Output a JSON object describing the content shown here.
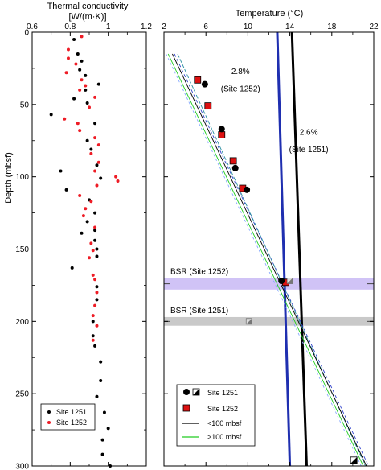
{
  "chart_data": [
    {
      "type": "scatter",
      "title_lines": [
        "Thermal conductivity",
        "[W/(m·K)]"
      ],
      "ylabel": "Depth (mbsf)",
      "xlim": [
        0.6,
        1.2
      ],
      "ylim": [
        0,
        300
      ],
      "y_inverted": true,
      "x_ticks": [
        "0.6",
        "0.8",
        "1",
        "1.2"
      ],
      "y_ticks": [
        "0",
        "50",
        "100",
        "150",
        "200",
        "250",
        "300"
      ],
      "legend_position": "bottom-left",
      "series": [
        {
          "name": "Site 1251",
          "color": "#000000",
          "points": [
            [
              0.82,
              5
            ],
            [
              0.84,
              15
            ],
            [
              0.86,
              20
            ],
            [
              0.85,
              26
            ],
            [
              0.88,
              30
            ],
            [
              0.95,
              36
            ],
            [
              0.88,
              40
            ],
            [
              0.82,
              46
            ],
            [
              0.89,
              49
            ],
            [
              0.7,
              57
            ],
            [
              0.93,
              63
            ],
            [
              0.89,
              75
            ],
            [
              0.91,
              81
            ],
            [
              0.94,
              92
            ],
            [
              0.75,
              96
            ],
            [
              0.96,
              101
            ],
            [
              0.78,
              109
            ],
            [
              0.9,
              116
            ],
            [
              0.93,
              125
            ],
            [
              0.89,
              131
            ],
            [
              0.93,
              137
            ],
            [
              0.86,
              139
            ],
            [
              0.93,
              144
            ],
            [
              0.94,
              150
            ],
            [
              0.94,
              155
            ],
            [
              0.81,
              163
            ],
            [
              0.94,
              176
            ],
            [
              0.94,
              185
            ],
            [
              0.92,
              200
            ],
            [
              0.92,
              210
            ],
            [
              0.93,
              217
            ],
            [
              0.96,
              228
            ],
            [
              0.96,
              241
            ],
            [
              0.94,
              252
            ],
            [
              0.98,
              263
            ],
            [
              1.0,
              274
            ],
            [
              0.97,
              282
            ],
            [
              0.97,
              292
            ],
            [
              1.01,
              300
            ]
          ]
        },
        {
          "name": "Site 1252",
          "color": "#ee1c25",
          "points": [
            [
              0.86,
              3
            ],
            [
              0.79,
              12
            ],
            [
              0.79,
              18
            ],
            [
              0.83,
              22
            ],
            [
              0.78,
              28
            ],
            [
              0.86,
              33
            ],
            [
              0.88,
              37
            ],
            [
              0.85,
              40
            ],
            [
              0.93,
              45
            ],
            [
              0.9,
              52
            ],
            [
              0.77,
              60
            ],
            [
              0.84,
              63
            ],
            [
              0.85,
              68
            ],
            [
              0.93,
              73
            ],
            [
              0.95,
              78
            ],
            [
              0.91,
              84
            ],
            [
              0.95,
              90
            ],
            [
              0.93,
              96
            ],
            [
              1.04,
              100
            ],
            [
              1.05,
              103
            ],
            [
              0.94,
              106
            ],
            [
              0.85,
              113
            ],
            [
              0.91,
              117
            ],
            [
              0.88,
              122
            ],
            [
              0.87,
              127
            ],
            [
              0.93,
              135
            ],
            [
              0.91,
              146
            ],
            [
              0.92,
              151
            ],
            [
              0.9,
              156
            ],
            [
              0.92,
              168
            ],
            [
              0.93,
              171
            ],
            [
              0.94,
              180
            ],
            [
              0.93,
              189
            ],
            [
              0.92,
              196
            ],
            [
              0.94,
              203
            ],
            [
              0.92,
              213
            ]
          ]
        }
      ]
    },
    {
      "type": "line",
      "title": "Temperature (°C)",
      "xlim": [
        2,
        22
      ],
      "ylim": [
        0,
        300
      ],
      "y_inverted": true,
      "x_ticks": [
        "2",
        "6",
        "10",
        "14",
        "18",
        "22"
      ],
      "legend_position": "bottom-left",
      "legend": [
        {
          "label": "Site 1251",
          "marker": "circle + half-filled square"
        },
        {
          "label": "Site 1252",
          "marker": "red square"
        },
        {
          "label": "<100 mbsf",
          "color": "#000000"
        },
        {
          "label": ">100 mbsf",
          "color": "#22cc22"
        }
      ],
      "annotations": [
        {
          "text": "2.8%",
          "x": 9.3,
          "y": 29
        },
        {
          "text": "(Site 1252)",
          "x": 9.3,
          "y": 41
        },
        {
          "text": "2.6%",
          "x": 15.8,
          "y": 71
        },
        {
          "text": "(Site 1251)",
          "x": 15.8,
          "y": 83
        }
      ],
      "bsr": [
        {
          "label": "BSR (Site 1252)",
          "depth": 174,
          "band": [
            170,
            178
          ],
          "color": "#c8b8f5"
        },
        {
          "label": "BSR (Site 1251)",
          "depth": 200,
          "band": [
            197,
            203
          ],
          "color": "#c0c0c0"
        }
      ],
      "series": [
        {
          "name": "2.8% (Site 1252)",
          "color": "#1f2fb0",
          "points": [
            [
              12.8,
              0
            ],
            [
              13.4,
              150
            ],
            [
              14.0,
              300
            ]
          ]
        },
        {
          "name": "2.6% (Site 1251)",
          "color": "#000000",
          "points": [
            [
              14.2,
              0
            ],
            [
              14.9,
              150
            ],
            [
              15.6,
              300
            ]
          ]
        },
        {
          "name": "fit 1",
          "color": "#3344cc",
          "points": [
            [
              3.0,
              15
            ],
            [
              21.5,
              300
            ]
          ]
        },
        {
          "name": "fit 2",
          "color": "#2b8fa0",
          "points": [
            [
              3.3,
              15
            ],
            [
              21.2,
              300
            ]
          ]
        },
        {
          "name": "fit 3",
          "color": "#22cc22",
          "points": [
            [
              2.4,
              15
            ],
            [
              21.0,
              300
            ]
          ]
        },
        {
          "name": "fit 4",
          "color": "#000000",
          "points": [
            [
              2.8,
              15
            ],
            [
              21.3,
              300
            ]
          ]
        },
        {
          "name": "fit 5",
          "color": "#88aaff",
          "points": [
            [
              2.2,
              15
            ],
            [
              20.8,
              300
            ]
          ]
        }
      ],
      "site_1251_points": [
        [
          5.9,
          36
        ],
        [
          7.5,
          67
        ],
        [
          8.8,
          94
        ],
        [
          9.9,
          109
        ],
        [
          13.2,
          172
        ],
        [
          20.1,
          296
        ]
      ],
      "site_1252_points": [
        [
          5.2,
          33
        ],
        [
          6.2,
          51
        ],
        [
          7.5,
          71
        ],
        [
          8.6,
          89
        ],
        [
          9.5,
          108
        ],
        [
          13.6,
          173
        ]
      ],
      "hydrate_markers": [
        [
          10.1,
          200
        ],
        [
          14.0,
          172
        ]
      ]
    }
  ]
}
